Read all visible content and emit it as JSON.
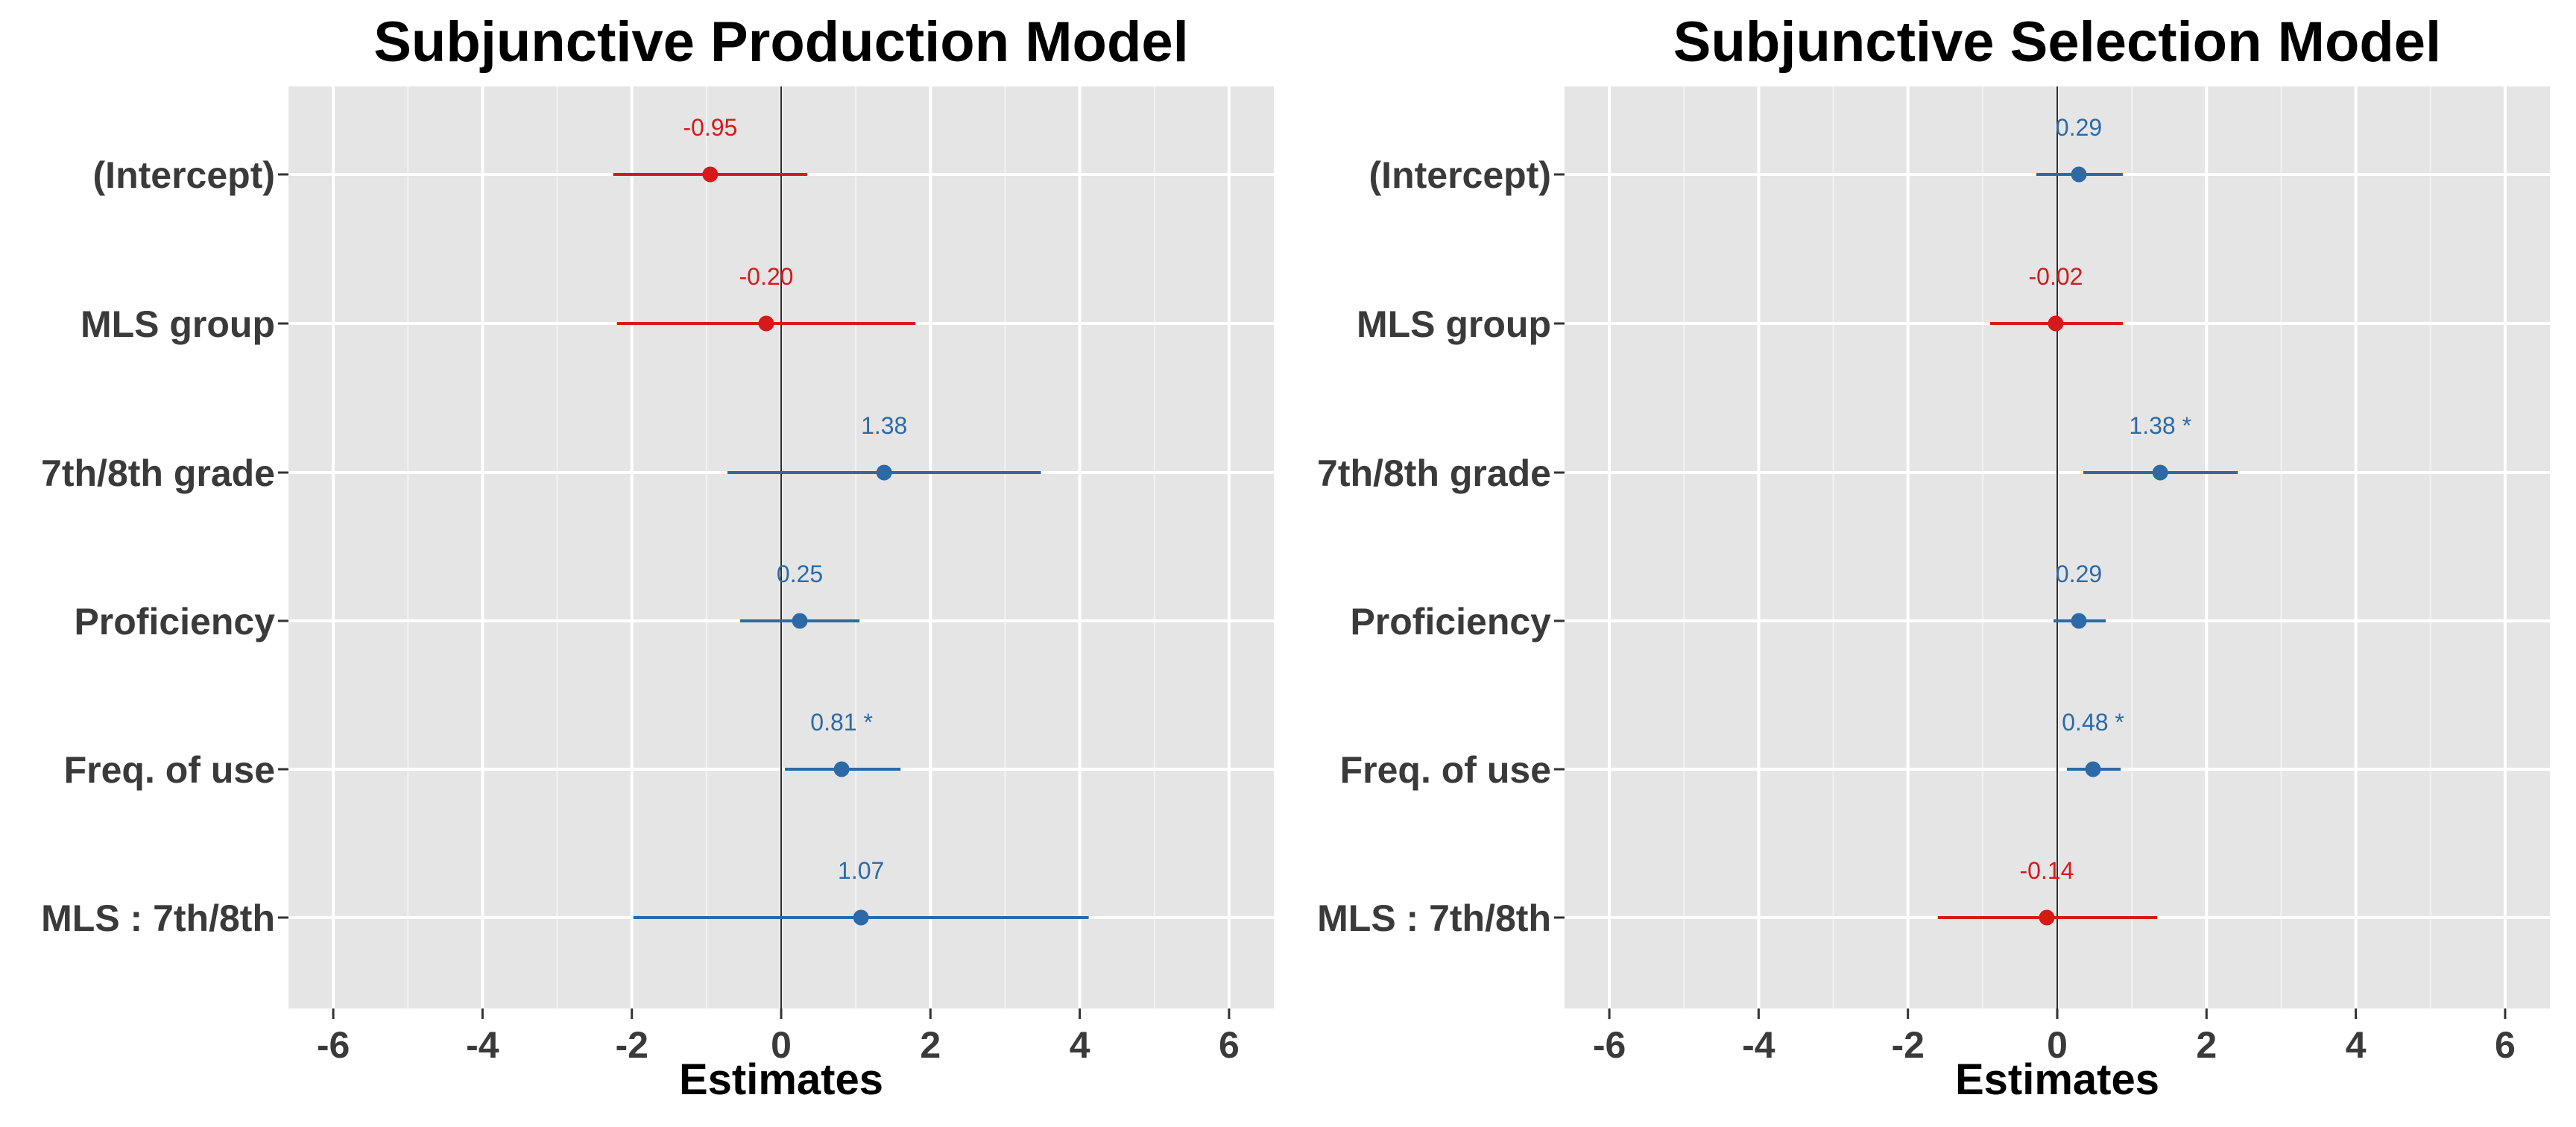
{
  "chart_data": [
    {
      "type": "forest",
      "title": "Subjunctive Production Model",
      "xlabel": "Estimates",
      "ylabel": "",
      "xlim": [
        -6.6,
        6.6
      ],
      "xticks": [
        -6,
        -4,
        -2,
        0,
        2,
        4,
        6
      ],
      "grid": true,
      "reference_line": 0,
      "categories": [
        "(Intercept)",
        "MLS group",
        "7th/8th grade",
        "Proficiency",
        "Freq. of use",
        "MLS : 7th/8th"
      ],
      "estimates": [
        -0.95,
        -0.2,
        1.38,
        0.25,
        0.81,
        1.07
      ],
      "ci_low": [
        -2.25,
        -2.2,
        -0.72,
        -0.55,
        0.05,
        -1.98
      ],
      "ci_high": [
        0.35,
        1.8,
        3.48,
        1.05,
        1.6,
        4.12
      ],
      "data_labels": [
        "-0.95",
        "-0.20",
        "1.38",
        "0.25",
        "0.81 *",
        "1.07"
      ],
      "colors": [
        "#d7191c",
        "#d7191c",
        "#2c6aa7",
        "#2c6aa7",
        "#2c6aa7",
        "#2c6aa7"
      ]
    },
    {
      "type": "forest",
      "title": "Subjunctive Selection Model",
      "xlabel": "Estimates",
      "ylabel": "",
      "xlim": [
        -6.6,
        6.6
      ],
      "xticks": [
        -6,
        -4,
        -2,
        0,
        2,
        4,
        6
      ],
      "grid": true,
      "reference_line": 0,
      "categories": [
        "(Intercept)",
        "MLS group",
        "7th/8th grade",
        "Proficiency",
        "Freq. of use",
        "MLS : 7th/8th"
      ],
      "estimates": [
        0.29,
        -0.02,
        1.38,
        0.29,
        0.48,
        -0.14
      ],
      "ci_low": [
        -0.28,
        -0.9,
        0.35,
        -0.05,
        0.13,
        -1.6
      ],
      "ci_high": [
        0.88,
        0.88,
        2.42,
        0.65,
        0.85,
        1.34
      ],
      "data_labels": [
        "0.29",
        "-0.02",
        "1.38 *",
        "0.29",
        "0.48 *",
        "-0.14"
      ],
      "colors": [
        "#2c6aa7",
        "#d7191c",
        "#2c6aa7",
        "#2c6aa7",
        "#2c6aa7",
        "#d7191c"
      ]
    }
  ]
}
